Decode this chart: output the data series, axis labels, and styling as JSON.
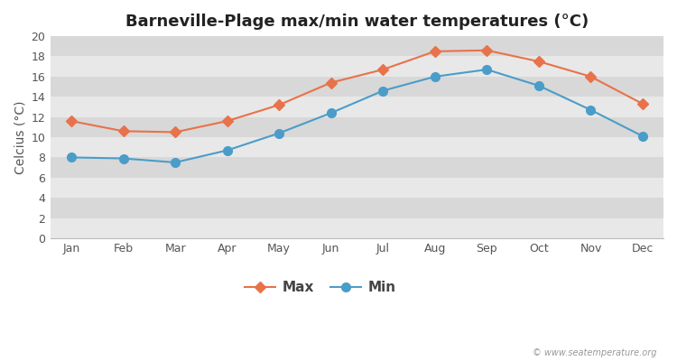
{
  "title": "Barneville-Plage max/min water temperatures (°C)",
  "months": [
    "Jan",
    "Feb",
    "Mar",
    "Apr",
    "May",
    "Jun",
    "Jul",
    "Aug",
    "Sep",
    "Oct",
    "Nov",
    "Dec"
  ],
  "max_temps": [
    11.6,
    10.6,
    10.5,
    11.6,
    13.2,
    15.4,
    16.7,
    18.5,
    18.6,
    17.5,
    16.0,
    13.3
  ],
  "min_temps": [
    8.0,
    7.9,
    7.5,
    8.7,
    10.4,
    12.4,
    14.6,
    16.0,
    16.7,
    15.1,
    12.7,
    10.1
  ],
  "max_color": "#e8724a",
  "min_color": "#4a9dc8",
  "ylabel": "Celcius (°C)",
  "ylim": [
    0,
    20
  ],
  "yticks": [
    0,
    2,
    4,
    6,
    8,
    10,
    12,
    14,
    16,
    18,
    20
  ],
  "bg_color_light": "#ebebeb",
  "bg_color_dark": "#e0e0e0",
  "fig_bg": "#ffffff",
  "stripe_color_1": "#e8e8e8",
  "stripe_color_2": "#d8d8d8",
  "watermark": "© www.seatemperature.org",
  "legend_max": "Max",
  "legend_min": "Min",
  "title_fontsize": 13,
  "label_fontsize": 10,
  "tick_fontsize": 9,
  "max_marker": "D",
  "min_marker": "o",
  "max_markersize": 6,
  "min_markersize": 7,
  "linewidth": 1.5
}
